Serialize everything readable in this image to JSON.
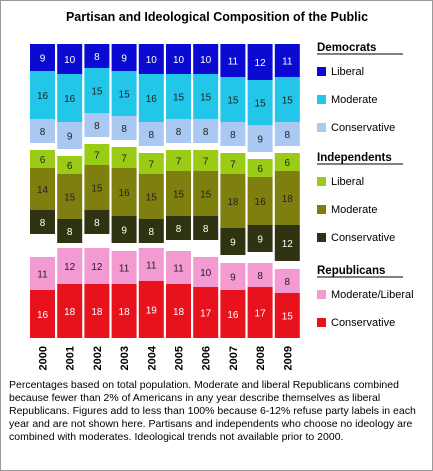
{
  "chart_data": {
    "type": "stacked_bar",
    "title": "Partisan and Ideological Composition of the Public",
    "categories": [
      "2000",
      "2001",
      "2002",
      "2003",
      "2004",
      "2005",
      "2006",
      "2007",
      "2008",
      "2009"
    ],
    "groups": [
      {
        "name": "Democrats",
        "series": [
          {
            "name": "Liberal",
            "color": "#0a0ad2",
            "values": [
              9,
              10,
              8,
              9,
              10,
              10,
              10,
              11,
              12,
              11
            ]
          },
          {
            "name": "Moderate",
            "color": "#22c6e8",
            "values": [
              16,
              16,
              15,
              15,
              16,
              15,
              15,
              15,
              15,
              15
            ]
          },
          {
            "name": "Conservative",
            "color": "#a9c9f2",
            "values": [
              8,
              9,
              8,
              8,
              8,
              8,
              8,
              8,
              9,
              8
            ]
          }
        ]
      },
      {
        "name": "Independents",
        "series": [
          {
            "name": "Liberal",
            "color": "#9acc16",
            "values": [
              6,
              6,
              7,
              7,
              7,
              7,
              7,
              7,
              6,
              6
            ]
          },
          {
            "name": "Moderate",
            "color": "#7f7f10",
            "values": [
              14,
              15,
              15,
              16,
              15,
              15,
              15,
              18,
              16,
              18
            ]
          },
          {
            "name": "Conservative",
            "color": "#2f3312",
            "values": [
              8,
              8,
              8,
              9,
              8,
              8,
              8,
              9,
              9,
              12
            ]
          }
        ]
      },
      {
        "name": "Republicans",
        "series": [
          {
            "name": "Moderate/Liberal",
            "color": "#f39ad2",
            "values": [
              11,
              12,
              12,
              11,
              11,
              11,
              10,
              9,
              8,
              8
            ]
          },
          {
            "name": "Conservative",
            "color": "#e8121c",
            "values": [
              16,
              18,
              18,
              18,
              19,
              18,
              17,
              16,
              17,
              15
            ]
          }
        ]
      }
    ],
    "note": "Percentages based on total population. Moderate and liberal Republicans combined because fewer than 2% of Americans in any year describe themselves as liberal Republicans. Figures add to less than 100% because 6-12% refuse party labels in each year and are not shown here. Partisans and independents who choose no ideology are combined with moderates. Ideological trends not available prior to 2000."
  }
}
